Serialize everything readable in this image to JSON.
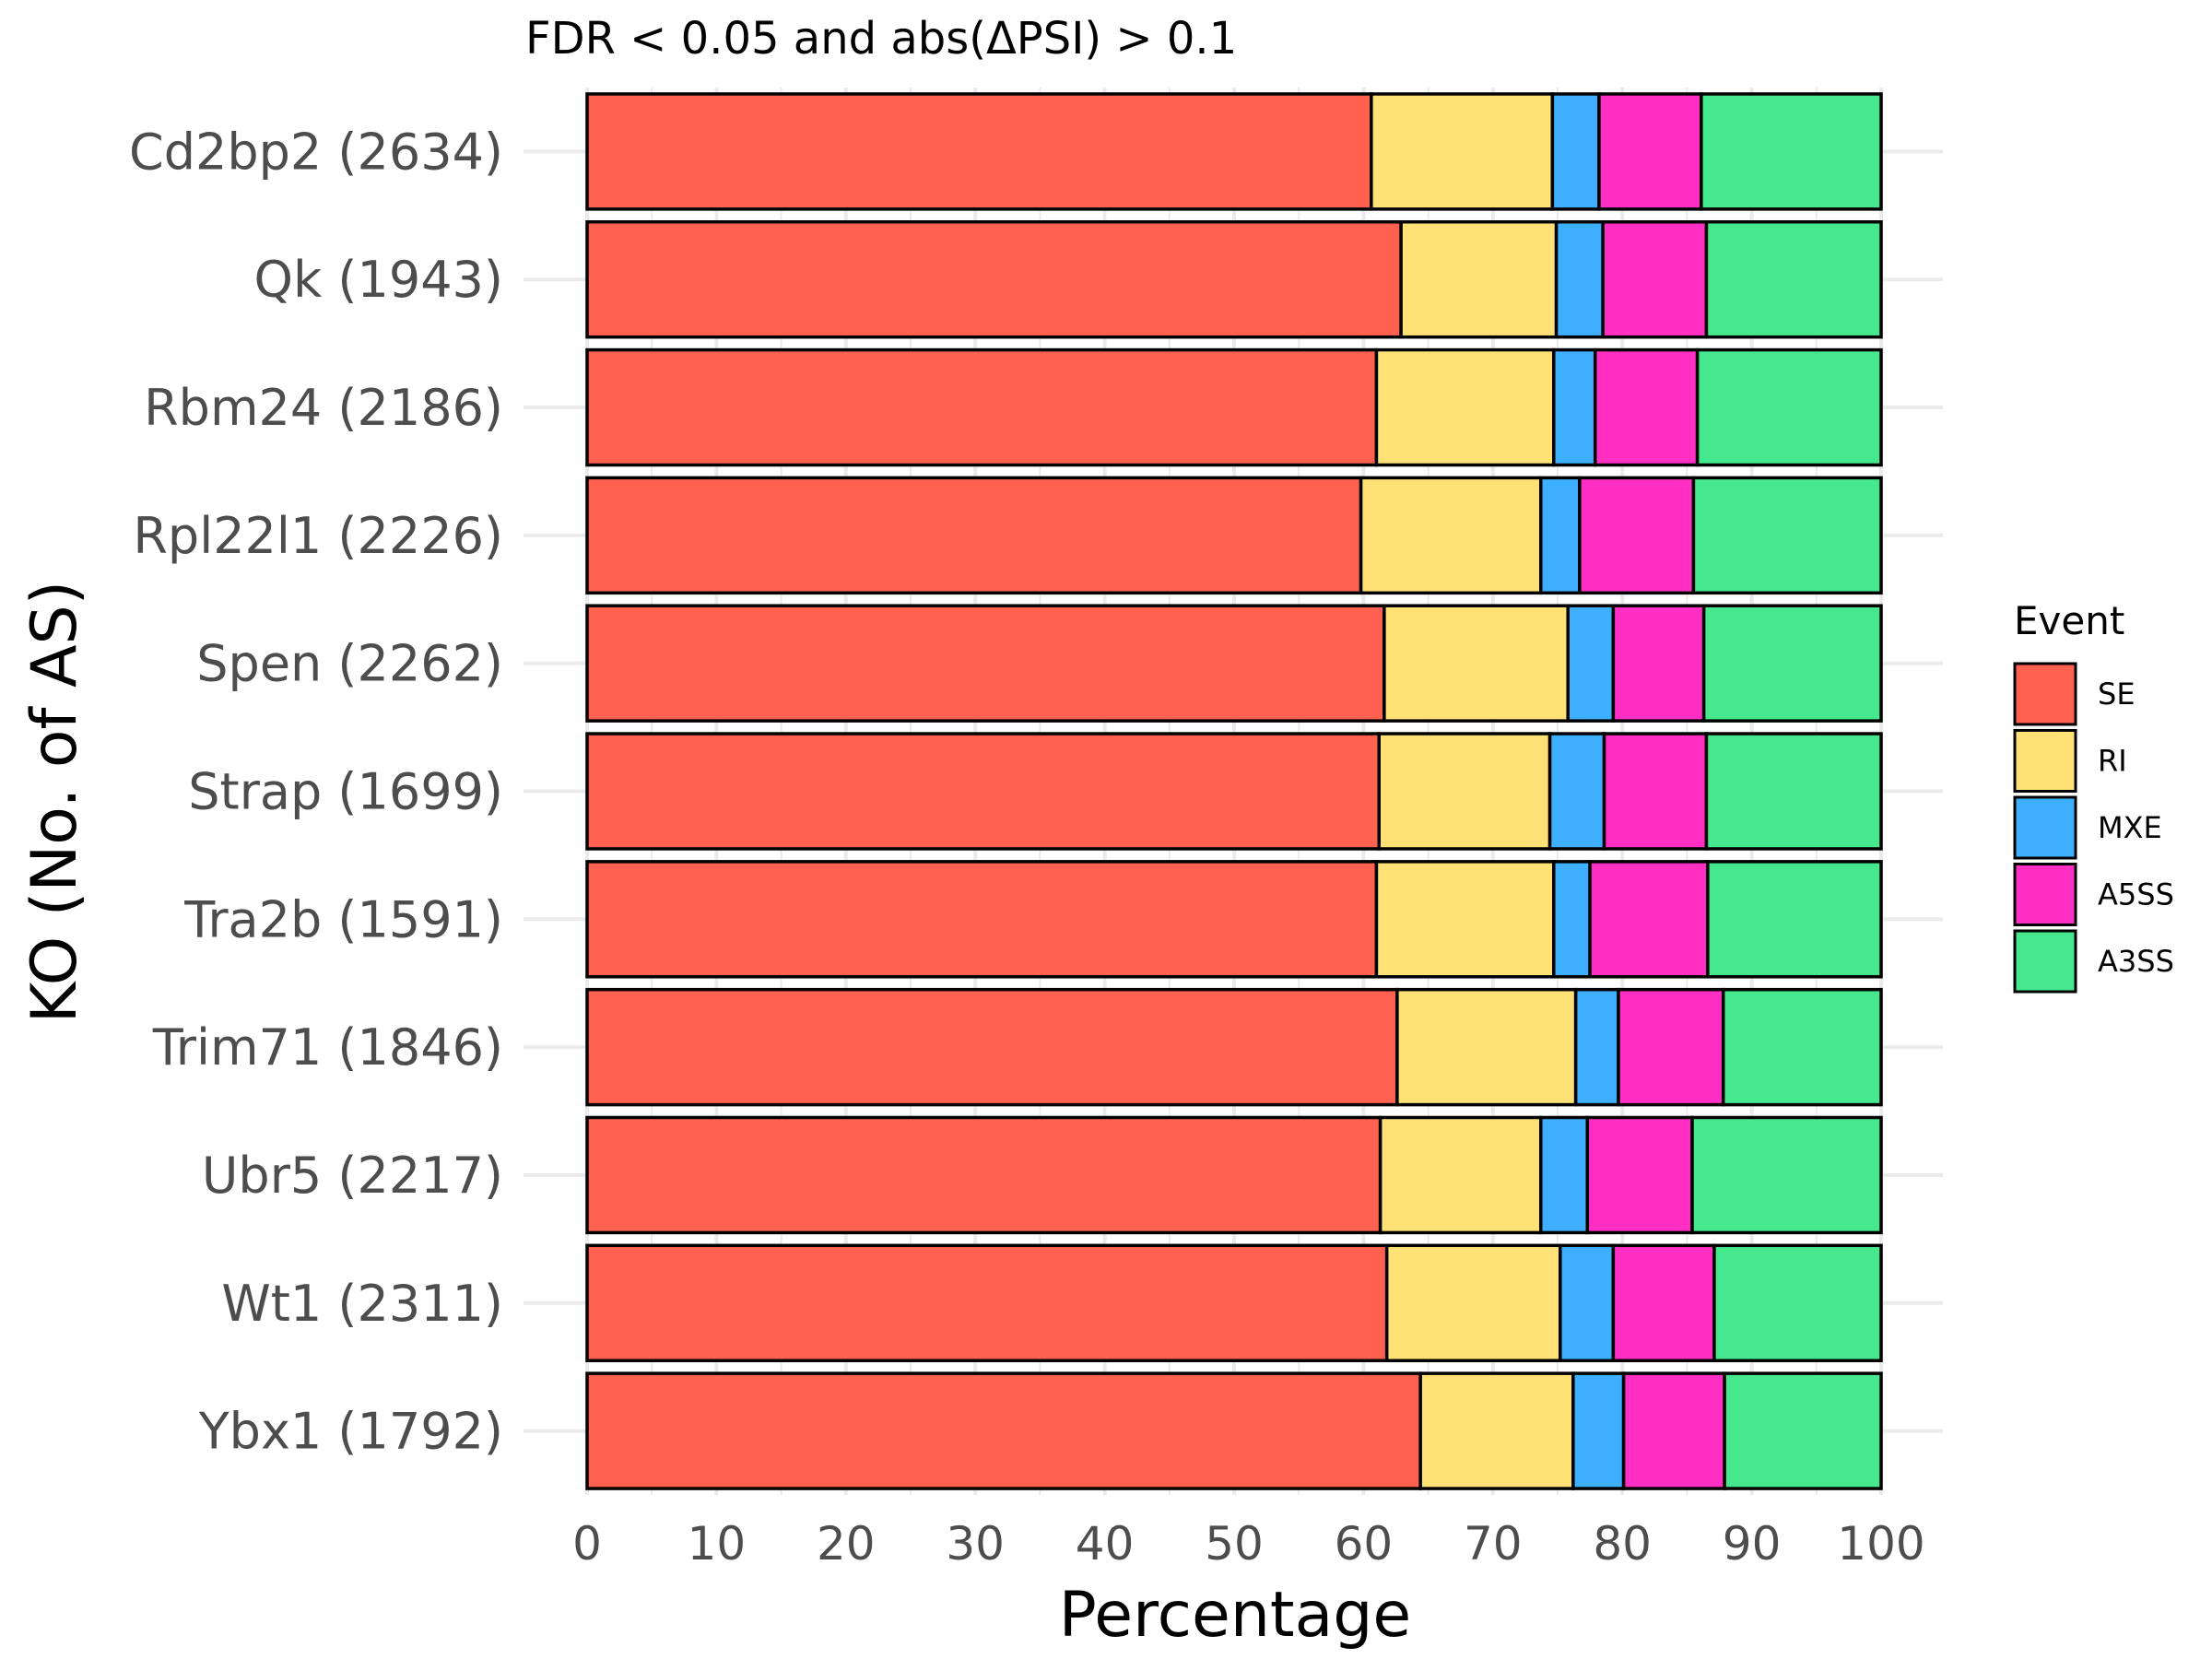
{
  "chart_data": {
    "type": "bar",
    "orientation": "horizontal",
    "stacked": true,
    "title": "FDR < 0.05 and abs(ΔPSI) > 0.1",
    "xlabel": "Percentage",
    "ylabel": "KO (No. of AS)",
    "xlim": [
      0,
      100
    ],
    "xticks": [
      "0",
      "10",
      "20",
      "30",
      "40",
      "50",
      "60",
      "70",
      "80",
      "90",
      "100"
    ],
    "grid": true,
    "categories": [
      "Cd2bp2 (2634)",
      "Qk (1943)",
      "Rbm24 (2186)",
      "Rpl22l1 (2226)",
      "Spen (2262)",
      "Strap (1699)",
      "Tra2b (1591)",
      "Trim71 (1846)",
      "Ubr5 (2217)",
      "Wt1 (2311)",
      "Ybx1 (1792)"
    ],
    "legend": {
      "title": "Event",
      "placement": "right"
    },
    "series": [
      {
        "name": "SE",
        "color": "#FF6150",
        "values": [
          60.6,
          62.9,
          61.0,
          59.8,
          61.6,
          61.2,
          61.0,
          62.6,
          61.3,
          61.8,
          64.4
        ]
      },
      {
        "name": "RI",
        "color": "#FFE176",
        "values": [
          14.0,
          12.0,
          13.7,
          13.9,
          14.2,
          13.2,
          13.7,
          13.8,
          12.4,
          13.4,
          11.8
        ]
      },
      {
        "name": "MXE",
        "color": "#3EAFFF",
        "values": [
          3.6,
          3.6,
          3.2,
          3.0,
          3.5,
          4.2,
          2.8,
          3.3,
          3.6,
          4.1,
          3.9
        ]
      },
      {
        "name": "A5SS",
        "color": "#FF2FC3",
        "values": [
          7.9,
          8.0,
          7.9,
          8.8,
          7.0,
          7.9,
          9.1,
          8.1,
          8.1,
          7.8,
          7.8
        ]
      },
      {
        "name": "A3SS",
        "color": "#45E88C",
        "values": [
          13.9,
          13.5,
          14.2,
          14.5,
          13.7,
          13.5,
          13.4,
          12.2,
          14.6,
          12.9,
          12.1
        ]
      }
    ]
  }
}
